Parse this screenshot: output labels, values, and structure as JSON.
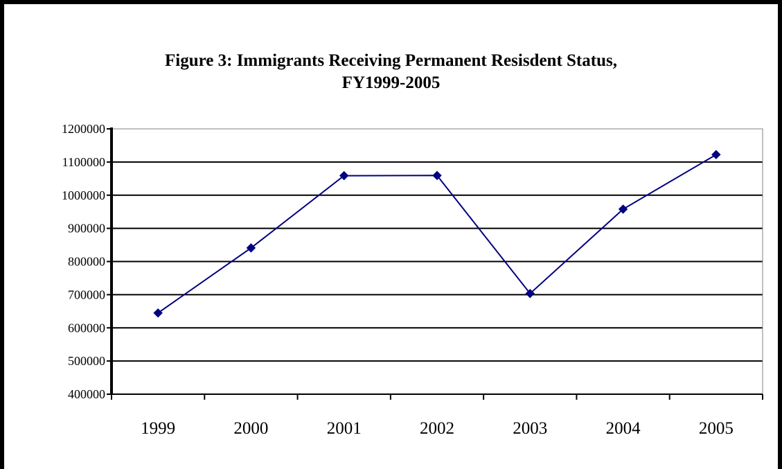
{
  "chart_data": {
    "type": "line",
    "title_line1": "Figure 3: Immigrants Receiving Permanent Resisdent Status,",
    "title_line2": "FY1999-2005",
    "xlabel": "",
    "ylabel": "",
    "categories": [
      "1999",
      "2000",
      "2001",
      "2002",
      "2003",
      "2004",
      "2005"
    ],
    "series": [
      {
        "values": [
          644787,
          841002,
          1058902,
          1059356,
          703542,
          957883,
          1122373
        ]
      }
    ],
    "ylim": [
      400000,
      1200000
    ],
    "yticks": [
      400000,
      500000,
      600000,
      700000,
      800000,
      900000,
      1000000,
      1100000,
      1200000
    ],
    "ytick_labels": [
      "400000",
      "500000",
      "600000",
      "700000",
      "800000",
      "900000",
      "1000000",
      "1100000",
      "1200000"
    ],
    "grid": true,
    "legend": "none",
    "colors": {
      "line": "#000080",
      "marker": "#000080",
      "grid": "#000000",
      "plot_border": "#808080"
    }
  }
}
